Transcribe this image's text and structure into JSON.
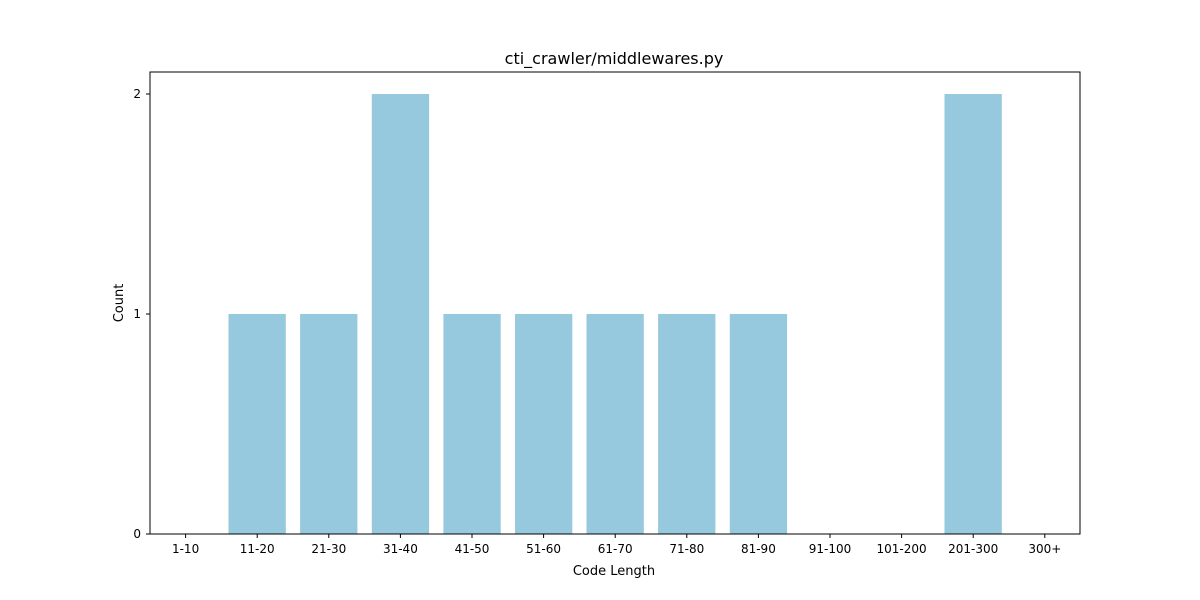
{
  "chart_data": {
    "type": "bar",
    "title": "cti_crawler/middlewares.py",
    "xlabel": "Code Length",
    "ylabel": "Count",
    "categories": [
      "1-10",
      "11-20",
      "21-30",
      "31-40",
      "41-50",
      "51-60",
      "61-70",
      "71-80",
      "81-90",
      "91-100",
      "101-200",
      "201-300",
      "300+"
    ],
    "values": [
      0,
      1,
      1,
      2,
      1,
      1,
      1,
      1,
      1,
      0,
      0,
      2,
      0
    ],
    "ylim": [
      0,
      2.1
    ],
    "yticks": [
      0,
      1,
      2
    ],
    "grid": false,
    "legend": "none",
    "bar_color": "#96c9dd"
  }
}
